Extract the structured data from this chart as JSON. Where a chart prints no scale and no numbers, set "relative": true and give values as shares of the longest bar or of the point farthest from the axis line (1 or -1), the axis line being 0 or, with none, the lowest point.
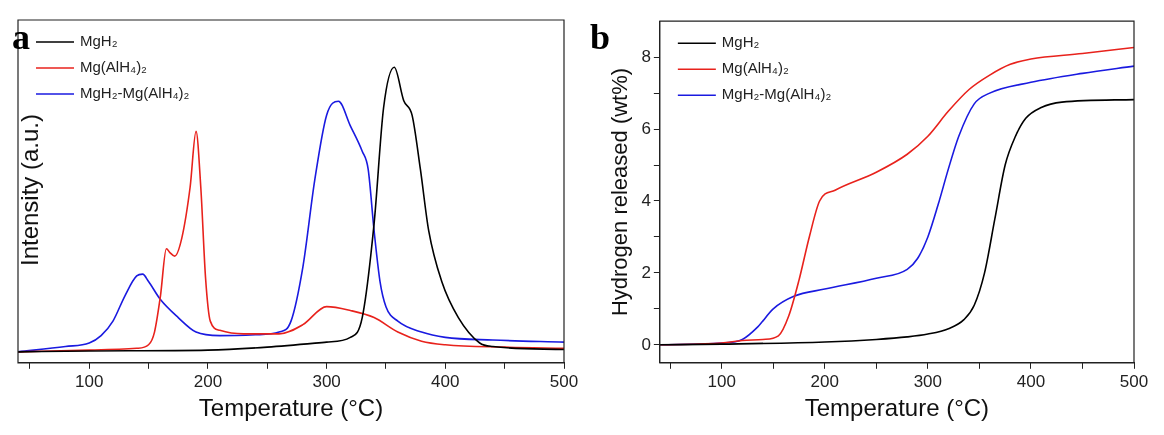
{
  "chart_data": [
    {
      "type": "line",
      "annotations": [
        "a"
      ],
      "xlabel": "Temperature (°C)",
      "ylabel": "Intensity (a.u.)",
      "relative": true,
      "tick_labels": "x",
      "xlim": [
        40,
        500
      ],
      "xticks": [
        {
          "value": 50,
          "label": null
        },
        100,
        {
          "value": 150,
          "label": null
        },
        200,
        {
          "value": 250,
          "label": null
        },
        300,
        {
          "value": 350,
          "label": null
        },
        400,
        {
          "value": 450,
          "label": null
        },
        500
      ],
      "grid": false,
      "legend": "top left",
      "line_style": "solid",
      "marker": "none",
      "series": [
        {
          "name": "MgH₂",
          "color": "#000000",
          "x": [
            40,
            100,
            200,
            250,
            300,
            320,
            330,
            340,
            348,
            357,
            365,
            372,
            379,
            386,
            397,
            411,
            429,
            440,
            500
          ],
          "values": [
            0.037,
            0.04,
            0.043,
            0.053,
            0.07,
            0.086,
            0.153,
            0.471,
            0.863,
            1.0,
            0.887,
            0.838,
            0.655,
            0.447,
            0.275,
            0.153,
            0.067,
            0.055,
            0.045
          ]
        },
        {
          "name": "Mg(AlH₄)₂",
          "color": "#e8221c",
          "x": [
            40,
            100,
            140,
            150,
            155,
            160,
            165,
            168,
            172,
            178,
            185,
            190,
            194,
            198,
            202,
            210,
            230,
            260,
            280,
            300,
            320,
            340,
            360,
            380,
            400,
            450,
            500
          ],
          "values": [
            0.037,
            0.043,
            0.049,
            0.061,
            0.104,
            0.226,
            0.386,
            0.373,
            0.361,
            0.422,
            0.594,
            0.783,
            0.594,
            0.288,
            0.141,
            0.11,
            0.098,
            0.098,
            0.129,
            0.19,
            0.177,
            0.153,
            0.104,
            0.073,
            0.061,
            0.053,
            0.049
          ]
        },
        {
          "name": "MgH₂-Mg(AlH₄)₂",
          "color": "#1a1ae0",
          "x": [
            40,
            80,
            100,
            110,
            120,
            130,
            140,
            145,
            150,
            160,
            175,
            190,
            210,
            240,
            260,
            270,
            280,
            290,
            300,
            310,
            320,
            330,
            335,
            340,
            345,
            350,
            360,
            380,
            400,
            440,
            500
          ],
          "values": [
            0.037,
            0.055,
            0.067,
            0.092,
            0.141,
            0.226,
            0.294,
            0.3,
            0.275,
            0.214,
            0.153,
            0.104,
            0.092,
            0.095,
            0.104,
            0.141,
            0.324,
            0.618,
            0.838,
            0.885,
            0.802,
            0.716,
            0.655,
            0.447,
            0.275,
            0.19,
            0.141,
            0.104,
            0.086,
            0.077,
            0.07
          ]
        }
      ]
    },
    {
      "type": "line",
      "annotations": [
        "b"
      ],
      "xlabel": "Temperature (°C)",
      "ylabel": "Hydrogen released (wt%)",
      "xlim": [
        40,
        500
      ],
      "xticks": [
        {
          "value": 50,
          "label": null
        },
        100,
        {
          "value": 150,
          "label": null
        },
        200,
        {
          "value": 250,
          "label": null
        },
        300,
        {
          "value": 350,
          "label": null
        },
        400,
        {
          "value": 450,
          "label": null
        },
        500
      ],
      "ylim": [
        -0.5,
        9
      ],
      "yticks": [
        0,
        {
          "value": 1,
          "label": null
        },
        2,
        {
          "value": 3,
          "label": null
        },
        4,
        {
          "value": 5,
          "label": null
        },
        6,
        {
          "value": 7,
          "label": null
        },
        8
      ],
      "grid": false,
      "legend": "top left",
      "line_style": "solid",
      "marker": "none",
      "series": [
        {
          "name": "MgH₂",
          "color": "#000000",
          "x": [
            40,
            100,
            200,
            250,
            280,
            300,
            320,
            335,
            345,
            355,
            365,
            375,
            385,
            395,
            410,
            430,
            500
          ],
          "values": [
            0,
            0.02,
            0.08,
            0.15,
            0.22,
            0.3,
            0.45,
            0.7,
            1.1,
            2.0,
            3.5,
            5.0,
            5.8,
            6.3,
            6.6,
            6.75,
            6.82
          ]
        },
        {
          "name": "Mg(AlH₄)₂",
          "color": "#e8221c",
          "x": [
            40,
            100,
            120,
            140,
            155,
            165,
            175,
            185,
            195,
            210,
            250,
            280,
            300,
            320,
            340,
            360,
            380,
            400,
            450,
            500
          ],
          "values": [
            0,
            0.05,
            0.12,
            0.15,
            0.25,
            0.8,
            1.8,
            3.0,
            4.0,
            4.3,
            4.8,
            5.3,
            5.8,
            6.5,
            7.1,
            7.5,
            7.8,
            7.95,
            8.1,
            8.27
          ]
        },
        {
          "name": "MgH₂-Mg(AlH₄)₂",
          "color": "#1a1ae0",
          "x": [
            40,
            100,
            120,
            135,
            150,
            170,
            200,
            250,
            280,
            290,
            300,
            310,
            320,
            330,
            345,
            360,
            400,
            450,
            500
          ],
          "values": [
            0,
            0.05,
            0.15,
            0.5,
            1.0,
            1.35,
            1.55,
            1.85,
            2.1,
            2.4,
            3.0,
            3.9,
            4.9,
            5.8,
            6.7,
            7.0,
            7.3,
            7.55,
            7.75
          ]
        }
      ]
    }
  ]
}
